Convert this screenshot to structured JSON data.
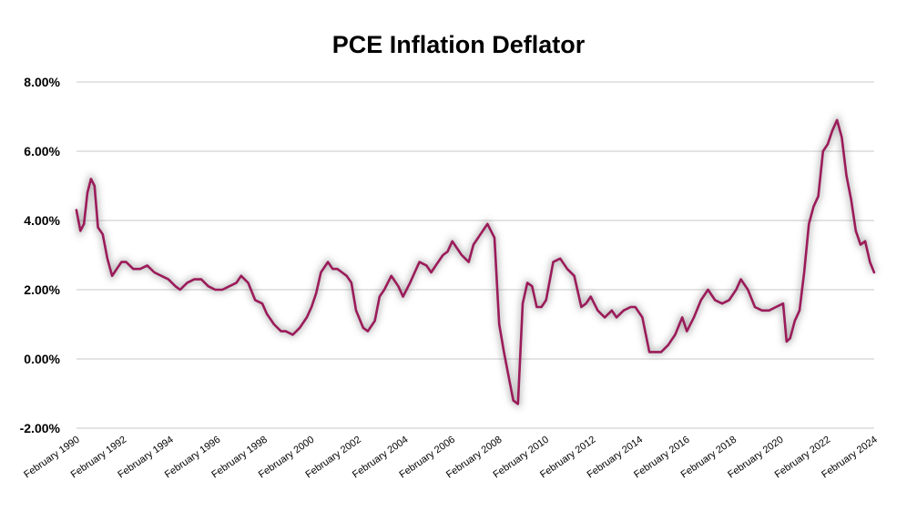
{
  "chart_data": {
    "type": "line",
    "title": "PCE Inflation Deflator",
    "xlabel": "",
    "ylabel": "",
    "ylim": [
      -2,
      8
    ],
    "yticks": [
      8,
      6,
      4,
      2,
      0,
      -2
    ],
    "ytick_labels": [
      "8.00%",
      "6.00%",
      "4.00%",
      "2.00%",
      "0.00%",
      "-2.00%"
    ],
    "xlim": [
      1990.083,
      2024.083
    ],
    "xtick_labels": [
      "February 1990",
      "February 1992",
      "February 1994",
      "February 1996",
      "February 1998",
      "February 2000",
      "February 2002",
      "February 2004",
      "February 2006",
      "February 2008",
      "February 2010",
      "February 2012",
      "February 2014",
      "February 2016",
      "February 2018",
      "February 2020",
      "February 2022",
      "February 2024"
    ],
    "grid": "horizontal",
    "legend": "none",
    "series_color": "#9b1b5a",
    "series": [
      {
        "x": [
          1990.08,
          1990.25,
          1990.4,
          1990.55,
          1990.7,
          1990.85,
          1991.0,
          1991.2,
          1991.4,
          1991.6,
          1991.8,
          1992.0,
          1992.2,
          1992.5,
          1992.8,
          1993.1,
          1993.4,
          1993.7,
          1994.0,
          1994.3,
          1994.5,
          1994.8,
          1995.1,
          1995.4,
          1995.7,
          1996.0,
          1996.3,
          1996.6,
          1996.9,
          1997.1,
          1997.4,
          1997.7,
          1998.0,
          1998.2,
          1998.5,
          1998.8,
          1999.0,
          1999.3,
          1999.6,
          1999.9,
          2000.1,
          2000.3,
          2000.5,
          2000.8,
          2001.0,
          2001.2,
          2001.4,
          2001.6,
          2001.8,
          2002.0,
          2002.3,
          2002.5,
          2002.8,
          2003.0,
          2003.2,
          2003.5,
          2003.8,
          2004.0,
          2004.3,
          2004.5,
          2004.7,
          2005.0,
          2005.2,
          2005.4,
          2005.7,
          2005.9,
          2006.1,
          2006.3,
          2006.5,
          2006.8,
          2007.0,
          2007.3,
          2007.6,
          2007.9,
          2008.1,
          2008.3,
          2008.5,
          2008.7,
          2008.9,
          2009.1,
          2009.3,
          2009.5,
          2009.7,
          2009.9,
          2010.1,
          2010.4,
          2010.7,
          2011.0,
          2011.3,
          2011.6,
          2011.8,
          2012.0,
          2012.3,
          2012.6,
          2012.9,
          2013.1,
          2013.4,
          2013.7,
          2013.9,
          2014.2,
          2014.5,
          2014.8,
          2015.0,
          2015.3,
          2015.6,
          2015.9,
          2016.1,
          2016.4,
          2016.7,
          2017.0,
          2017.3,
          2017.6,
          2017.9,
          2018.2,
          2018.4,
          2018.7,
          2019.0,
          2019.3,
          2019.6,
          2019.9,
          2020.2,
          2020.35,
          2020.5,
          2020.7,
          2020.9,
          2021.1,
          2021.3,
          2021.5,
          2021.7,
          2021.9,
          2022.1,
          2022.3,
          2022.5,
          2022.7,
          2022.9,
          2023.1,
          2023.3,
          2023.5,
          2023.7,
          2023.9,
          2024.08
        ],
        "y": [
          4.3,
          3.7,
          3.9,
          4.8,
          5.2,
          5.0,
          3.8,
          3.6,
          2.9,
          2.4,
          2.6,
          2.8,
          2.8,
          2.6,
          2.6,
          2.7,
          2.5,
          2.4,
          2.3,
          2.1,
          2.0,
          2.2,
          2.3,
          2.3,
          2.1,
          2.0,
          2.0,
          2.1,
          2.2,
          2.4,
          2.2,
          1.7,
          1.6,
          1.3,
          1.0,
          0.8,
          0.8,
          0.7,
          0.9,
          1.2,
          1.5,
          1.9,
          2.5,
          2.8,
          2.6,
          2.6,
          2.5,
          2.4,
          2.2,
          1.4,
          0.9,
          0.8,
          1.1,
          1.8,
          2.0,
          2.4,
          2.1,
          1.8,
          2.2,
          2.5,
          2.8,
          2.7,
          2.5,
          2.7,
          3.0,
          3.1,
          3.4,
          3.2,
          3.0,
          2.8,
          3.3,
          3.6,
          3.9,
          3.5,
          1.0,
          0.2,
          -0.5,
          -1.2,
          -1.3,
          1.6,
          2.2,
          2.1,
          1.5,
          1.5,
          1.7,
          2.8,
          2.9,
          2.6,
          2.4,
          1.5,
          1.6,
          1.8,
          1.4,
          1.2,
          1.4,
          1.2,
          1.4,
          1.5,
          1.5,
          1.2,
          0.2,
          0.2,
          0.2,
          0.4,
          0.7,
          1.2,
          0.8,
          1.2,
          1.7,
          2.0,
          1.7,
          1.6,
          1.7,
          2.0,
          2.3,
          2.0,
          1.5,
          1.4,
          1.4,
          1.5,
          1.6,
          0.5,
          0.6,
          1.1,
          1.4,
          2.5,
          3.9,
          4.4,
          4.7,
          6.0,
          6.2,
          6.6,
          6.9,
          6.4,
          5.3,
          4.6,
          3.7,
          3.3,
          3.4,
          2.8,
          2.5
        ]
      }
    ]
  }
}
